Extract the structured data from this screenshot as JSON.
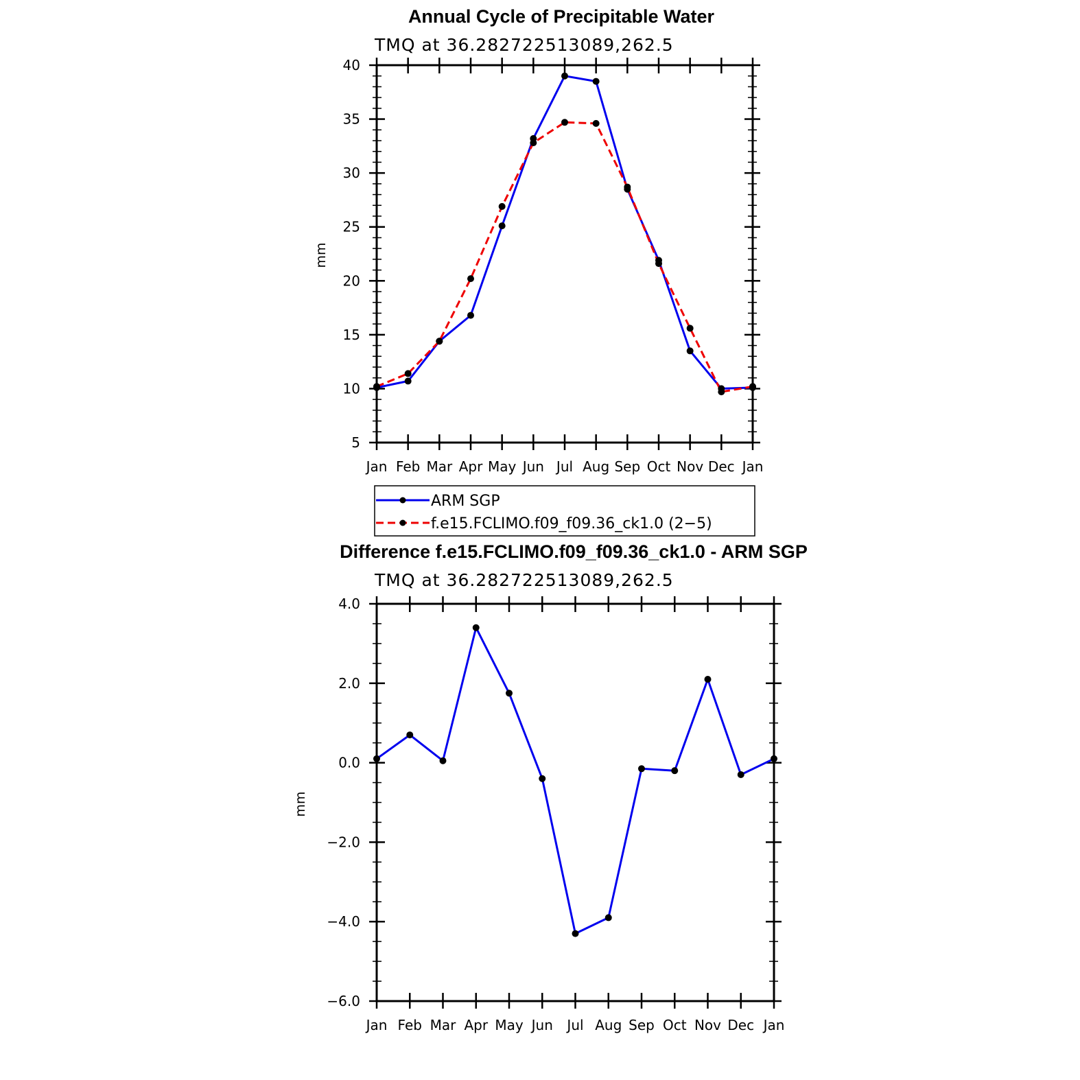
{
  "chart_data": [
    {
      "type": "line",
      "title": "Annual Cycle of Precipitable Water",
      "subtitle": "TMQ at 36.282722513089,262.5",
      "xlabel": "",
      "ylabel": "mm",
      "categories": [
        "Jan",
        "Feb",
        "Mar",
        "Apr",
        "May",
        "Jun",
        "Jul",
        "Aug",
        "Sep",
        "Oct",
        "Nov",
        "Dec",
        "Jan"
      ],
      "ylim": [
        5,
        40
      ],
      "yticks": [
        5,
        10,
        15,
        20,
        25,
        30,
        35,
        40
      ],
      "ytick_labels": [
        "5",
        "10",
        "15",
        "20",
        "25",
        "30",
        "35",
        "40"
      ],
      "grid": false,
      "legend": "below",
      "series": [
        {
          "name": "ARM SGP",
          "color": "#0000ee",
          "dash": "solid",
          "values": [
            10.1,
            10.7,
            14.4,
            16.8,
            25.1,
            33.2,
            39.0,
            38.5,
            28.5,
            21.9,
            13.5,
            10.0,
            10.1
          ]
        },
        {
          "name": "f.e15.FCLIMO.f09_f09.36_ck1.0 (2−5)",
          "color": "#ee0000",
          "dash": "dashed",
          "values": [
            10.2,
            11.4,
            14.4,
            20.2,
            26.9,
            32.8,
            34.7,
            34.6,
            28.7,
            21.6,
            15.6,
            9.7,
            10.2
          ]
        }
      ]
    },
    {
      "type": "line",
      "title": "Difference f.e15.FCLIMO.f09_f09.36_ck1.0 - ARM SGP",
      "subtitle": "TMQ at 36.282722513089,262.5",
      "xlabel": "",
      "ylabel": "mm",
      "categories": [
        "Jan",
        "Feb",
        "Mar",
        "Apr",
        "May",
        "Jun",
        "Jul",
        "Aug",
        "Sep",
        "Oct",
        "Nov",
        "Dec",
        "Jan"
      ],
      "ylim": [
        -6,
        4
      ],
      "yticks": [
        -6,
        -4,
        -2,
        0,
        2,
        4
      ],
      "ytick_labels": [
        "−6.0",
        "−4.0",
        "−2.0",
        "0.0",
        "2.0",
        "4.0"
      ],
      "grid": false,
      "legend": "none",
      "series": [
        {
          "color": "#0000ee",
          "dash": "solid",
          "values": [
            0.1,
            0.7,
            0.05,
            3.4,
            1.75,
            -0.4,
            -4.3,
            -3.9,
            -0.15,
            -0.2,
            2.1,
            -0.3,
            0.1
          ]
        }
      ]
    }
  ]
}
